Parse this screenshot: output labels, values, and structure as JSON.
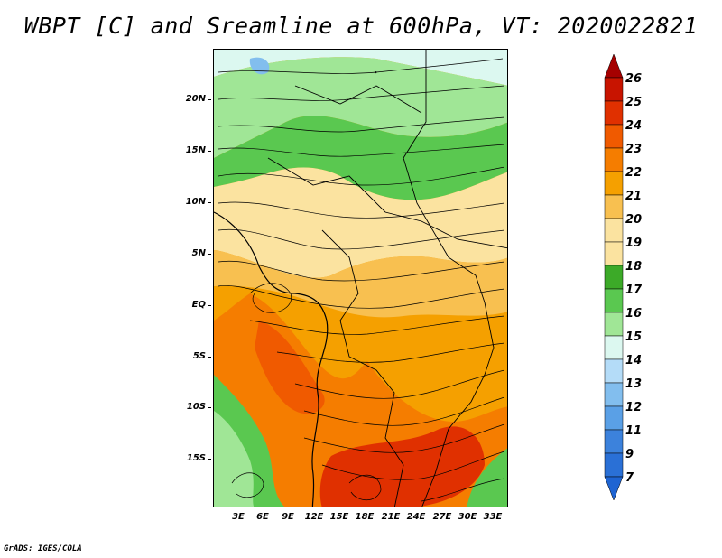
{
  "title": "WBPT [C] and Sreamline at 600hPa, VT: 2020022821",
  "footer": "GrADS: IGES/COLA",
  "lat_ticks": [
    "20N",
    "15N",
    "10N",
    "5N",
    "EQ",
    "5S",
    "10S",
    "15S"
  ],
  "lon_ticks": [
    "3E",
    "6E",
    "9E",
    "12E",
    "15E",
    "18E",
    "21E",
    "24E",
    "27E",
    "30E",
    "33E"
  ],
  "colorbar": {
    "labels": [
      "26",
      "25",
      "24",
      "23",
      "22",
      "21",
      "20",
      "19",
      "18",
      "17",
      "16",
      "15",
      "14",
      "13",
      "12",
      "11",
      "9",
      "7"
    ],
    "colors": [
      "#a50000",
      "#c81400",
      "#e03000",
      "#f05a00",
      "#f57d00",
      "#f5a000",
      "#f8c050",
      "#fbe3a0",
      "#3caa28",
      "#5ac850",
      "#a0e696",
      "#dcf8f0",
      "#b4dcf8",
      "#82beee",
      "#5aa0e6",
      "#3c82dc",
      "#1e64d2",
      "#1e64d2"
    ]
  }
}
